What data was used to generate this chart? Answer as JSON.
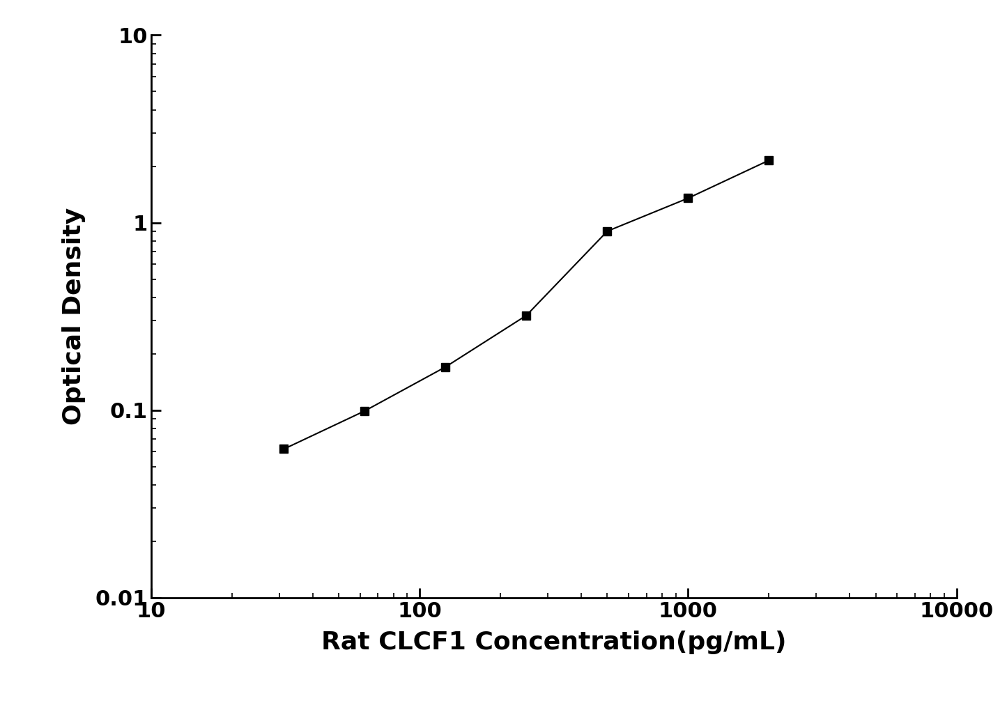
{
  "x": [
    31.25,
    62.5,
    125,
    250,
    500,
    1000,
    2000
  ],
  "y": [
    0.062,
    0.099,
    0.17,
    0.32,
    0.9,
    1.35,
    2.15
  ],
  "xlabel": "Rat CLCF1 Concentration(pg/mL)",
  "ylabel": "Optical Density",
  "xlim": [
    10,
    10000
  ],
  "ylim": [
    0.01,
    10
  ],
  "line_color": "#000000",
  "marker": "s",
  "marker_size": 9,
  "marker_color": "#000000",
  "linewidth": 1.5,
  "xlabel_fontsize": 26,
  "ylabel_fontsize": 26,
  "tick_fontsize": 22,
  "background_color": "#ffffff",
  "yticks": [
    0.01,
    0.1,
    1,
    10
  ],
  "ytick_labels": [
    "0.01",
    "0.1",
    "1",
    "10"
  ],
  "xticks": [
    10,
    100,
    1000,
    10000
  ],
  "xtick_labels": [
    "10",
    "100",
    "1000",
    "10000"
  ]
}
